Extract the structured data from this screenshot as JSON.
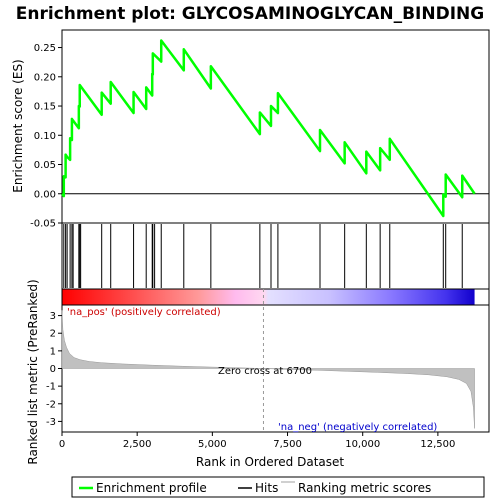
{
  "chart_data": {
    "type": "line",
    "title": "Enrichment plot: GLYCOSAMINOGLYCAN_BINDING",
    "xlabel": "Rank in Ordered Dataset",
    "ylabel_top": "Enrichment score (ES)",
    "ylabel_bottom": "Ranked list metric (PreRanked)",
    "xlim": [
      0,
      14200
    ],
    "x_ticks": [
      0,
      2500,
      5000,
      7500,
      10000,
      12500
    ],
    "x_tick_labels": [
      "0",
      "2,500",
      "5,000",
      "7,500",
      "10,000",
      "12,500"
    ],
    "es_ylim": [
      -0.05,
      0.28
    ],
    "es_ticks": [
      -0.05,
      0.0,
      0.05,
      0.1,
      0.15,
      0.2,
      0.25
    ],
    "es_tick_labels": [
      "-0.05",
      "0.00",
      "0.05",
      "0.10",
      "0.15",
      "0.20",
      "0.25"
    ],
    "metric_ylim": [
      -3.6,
      3.6
    ],
    "metric_ticks": [
      -3,
      -2,
      -1,
      0,
      1,
      2,
      3
    ],
    "metric_tick_labels": [
      "-3",
      "-2",
      "-1",
      "0",
      "1",
      "2",
      "3"
    ],
    "zero_cross_rank": 6700,
    "total_ranks": 13720,
    "hits": [
      60,
      120,
      170,
      270,
      330,
      370,
      560,
      590,
      620,
      1320,
      1620,
      2380,
      2800,
      3000,
      3020,
      3080,
      3300,
      4050,
      4950,
      6580,
      6950,
      7180,
      8580,
      9400,
      10120,
      10580,
      10900,
      12680,
      12760,
      13310
    ],
    "series": [
      {
        "name": "Enrichment profile",
        "color": "#00ff00",
        "points": [
          [
            0,
            0.0
          ],
          [
            60,
            -0.004
          ],
          [
            60,
            0.03
          ],
          [
            120,
            0.028
          ],
          [
            120,
            0.067
          ],
          [
            170,
            0.063
          ],
          [
            270,
            0.058
          ],
          [
            270,
            0.095
          ],
          [
            330,
            0.092
          ],
          [
            330,
            0.128
          ],
          [
            370,
            0.125
          ],
          [
            560,
            0.112
          ],
          [
            560,
            0.15
          ],
          [
            590,
            0.149
          ],
          [
            590,
            0.186
          ],
          [
            1320,
            0.135
          ],
          [
            1320,
            0.173
          ],
          [
            1620,
            0.154
          ],
          [
            1620,
            0.191
          ],
          [
            2380,
            0.138
          ],
          [
            2380,
            0.174
          ],
          [
            2800,
            0.145
          ],
          [
            2800,
            0.182
          ],
          [
            3000,
            0.168
          ],
          [
            3000,
            0.205
          ],
          [
            3020,
            0.204
          ],
          [
            3020,
            0.24
          ],
          [
            3300,
            0.226
          ],
          [
            3300,
            0.262
          ],
          [
            4050,
            0.211
          ],
          [
            4050,
            0.247
          ],
          [
            4950,
            0.18
          ],
          [
            4950,
            0.218
          ],
          [
            6580,
            0.102
          ],
          [
            6580,
            0.139
          ],
          [
            6950,
            0.116
          ],
          [
            6950,
            0.15
          ],
          [
            7180,
            0.138
          ],
          [
            7180,
            0.172
          ],
          [
            8580,
            0.073
          ],
          [
            8580,
            0.109
          ],
          [
            9400,
            0.052
          ],
          [
            9400,
            0.088
          ],
          [
            10120,
            0.035
          ],
          [
            10120,
            0.072
          ],
          [
            10580,
            0.04
          ],
          [
            10580,
            0.078
          ],
          [
            10900,
            0.058
          ],
          [
            10900,
            0.094
          ],
          [
            12680,
            -0.038
          ],
          [
            12680,
            -0.001
          ],
          [
            12760,
            -0.005
          ],
          [
            12760,
            0.033
          ],
          [
            13310,
            -0.006
          ],
          [
            13310,
            0.031
          ],
          [
            13720,
            0.0
          ]
        ]
      },
      {
        "name": "Hits",
        "color": "#000000"
      },
      {
        "name": "Ranking metric scores",
        "color": "#c0c0c0",
        "points": [
          [
            0,
            3.3
          ],
          [
            30,
            2.2
          ],
          [
            80,
            1.6
          ],
          [
            150,
            1.2
          ],
          [
            250,
            0.85
          ],
          [
            400,
            0.62
          ],
          [
            600,
            0.5
          ],
          [
            900,
            0.4
          ],
          [
            1300,
            0.33
          ],
          [
            2000,
            0.26
          ],
          [
            3000,
            0.19
          ],
          [
            4000,
            0.13
          ],
          [
            5000,
            0.08
          ],
          [
            6000,
            0.035
          ],
          [
            6700,
            0.0
          ],
          [
            7500,
            -0.05
          ],
          [
            8500,
            -0.1
          ],
          [
            9500,
            -0.16
          ],
          [
            10500,
            -0.22
          ],
          [
            11500,
            -0.29
          ],
          [
            12200,
            -0.36
          ],
          [
            12800,
            -0.47
          ],
          [
            13200,
            -0.62
          ],
          [
            13450,
            -0.85
          ],
          [
            13600,
            -1.3
          ],
          [
            13680,
            -2.2
          ],
          [
            13720,
            -3.4
          ]
        ]
      }
    ],
    "annotations": {
      "pos_label": "'na_pos' (positively correlated)",
      "neg_label": "'na_neg' (negatively correlated)",
      "zero_cross_label": "Zero cross at 6700"
    },
    "legend_placement": "bottom"
  },
  "colors": {
    "es_line": "#00ff00",
    "hit_line": "#000000",
    "metric_fill": "#c0c0c0",
    "pos_text": "#cc0000",
    "neg_text": "#0000cc"
  }
}
